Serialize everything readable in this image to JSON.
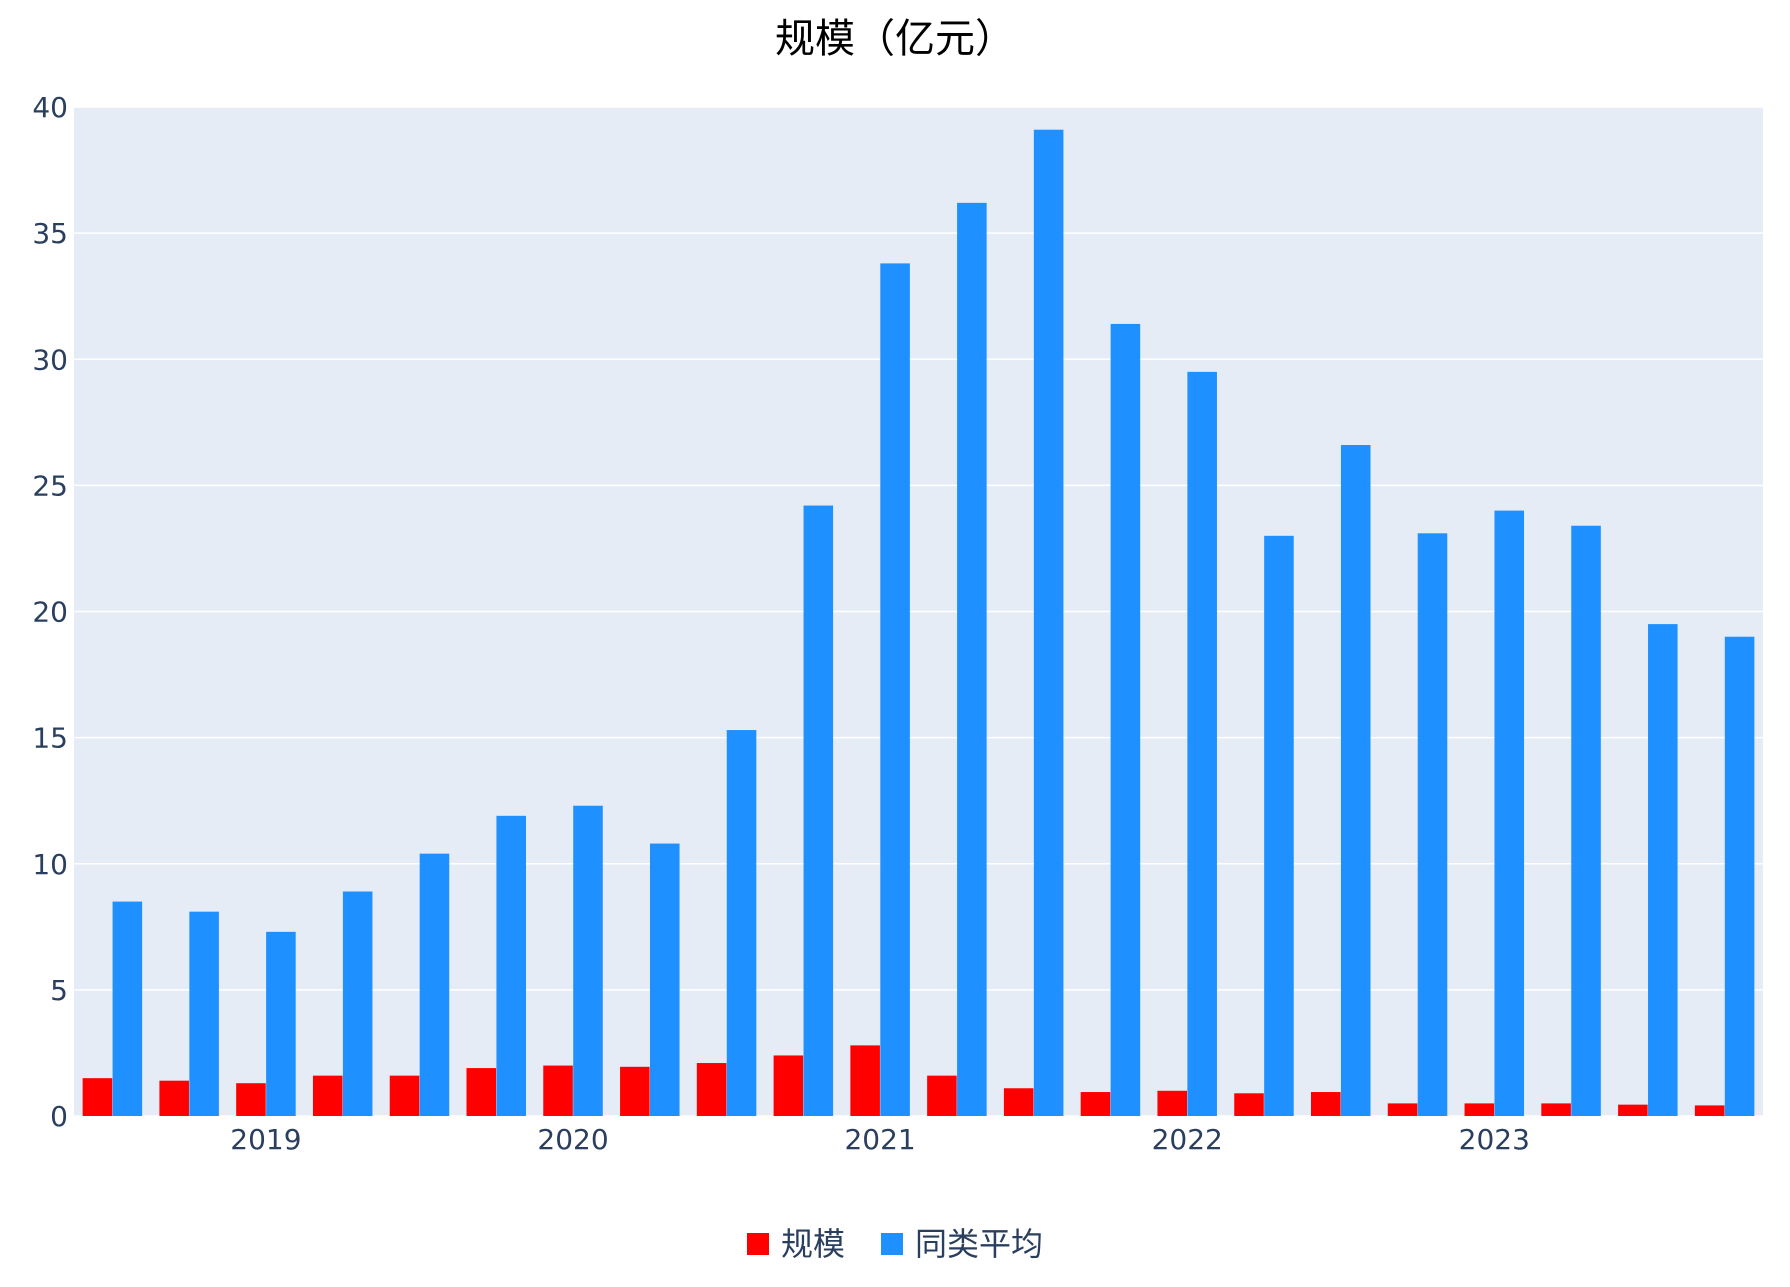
{
  "chart_data": {
    "type": "bar",
    "title": "规模（亿元）",
    "xlabel": "",
    "ylabel": "",
    "ylim": [
      0,
      40
    ],
    "yticks": [
      0,
      5,
      10,
      15,
      20,
      25,
      30,
      35,
      40
    ],
    "x_tick_labels": [
      "2019",
      "2020",
      "2021",
      "2022",
      "2023"
    ],
    "grid": true,
    "legend_position": "bottom-center",
    "series": [
      {
        "name": "规模",
        "color": "#ff0000",
        "values": [
          1.5,
          1.4,
          1.3,
          1.6,
          1.6,
          1.9,
          2.0,
          1.95,
          2.1,
          2.4,
          2.8,
          1.6,
          1.1,
          0.95,
          1.0,
          0.9,
          0.95,
          0.5,
          0.5,
          0.5,
          0.45,
          0.42
        ]
      },
      {
        "name": "同类平均",
        "color": "#1e90ff",
        "values": [
          8.5,
          8.1,
          7.3,
          8.9,
          10.4,
          11.9,
          12.3,
          10.8,
          15.3,
          24.2,
          33.8,
          36.2,
          39.1,
          31.4,
          29.5,
          23.0,
          26.6,
          23.1,
          24.0,
          23.4,
          19.5,
          19.0
        ]
      }
    ],
    "colors": {
      "plot_bg": "#e5ecf6",
      "grid": "#ffffff",
      "text": "#2a3f5f"
    }
  }
}
